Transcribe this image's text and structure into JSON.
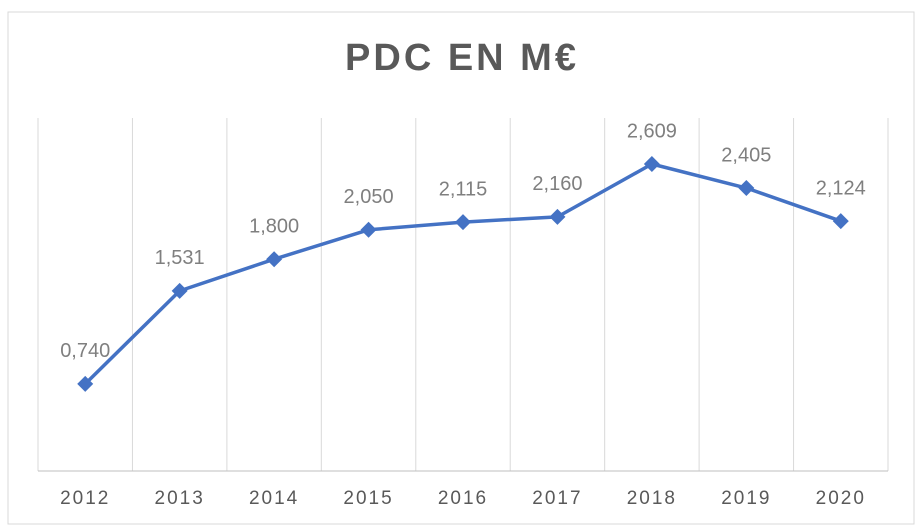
{
  "chart_data": {
    "type": "line",
    "title": "PDC EN M€",
    "categories": [
      "2012",
      "2013",
      "2014",
      "2015",
      "2016",
      "2017",
      "2018",
      "2019",
      "2020"
    ],
    "series": [
      {
        "name": null,
        "color": "#4472c4",
        "values": [
          0.74,
          1.531,
          1.8,
          2.05,
          2.115,
          2.16,
          2.609,
          2.405,
          2.124
        ],
        "value_labels": [
          "0,740",
          "1,531",
          "1,800",
          "2,050",
          "2,115",
          "2,160",
          "2,609",
          "2,405",
          "2,124"
        ]
      }
    ],
    "ylim": [
      0,
      3
    ]
  }
}
